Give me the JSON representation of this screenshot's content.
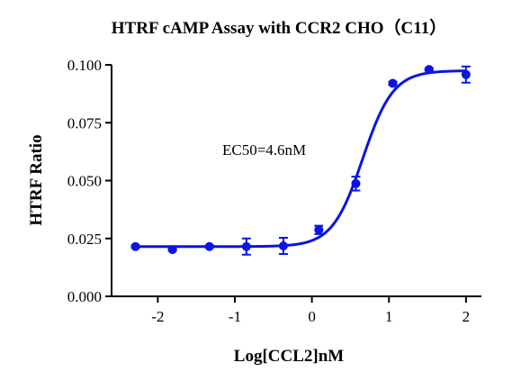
{
  "chart_data": {
    "type": "scatter",
    "title": "HTRF cAMP Assay with CCR2 CHO（C11）",
    "xlabel": "Log[CCL2]nM",
    "ylabel": "HTRF Ratio",
    "xlim": [
      -2.6,
      2.2
    ],
    "ylim": [
      0,
      0.1
    ],
    "x_ticks": [
      -2,
      -1,
      0,
      1,
      2
    ],
    "x_tick_labels": [
      "-2",
      "-1",
      "0",
      "1",
      "2"
    ],
    "y_ticks": [
      0,
      0.025,
      0.05,
      0.075,
      0.1
    ],
    "y_tick_labels": [
      "0.000",
      "0.025",
      "0.050",
      "0.075",
      "0.100"
    ],
    "grid": false,
    "color": "#0a14e6",
    "annotation": "EC50=4.6nM",
    "fit": {
      "model": "four-parameter logistic",
      "bottom": 0.0215,
      "top": 0.0975,
      "log_ec50": 0.66,
      "hill_slope": 2.2
    },
    "series": [
      {
        "x": [
          -2.29,
          -1.81,
          -1.33,
          -0.85,
          -0.37,
          0.09,
          0.57,
          1.05,
          1.52,
          2.0
        ],
        "y": [
          0.0215,
          0.0202,
          0.0215,
          0.0215,
          0.0218,
          0.0287,
          0.0487,
          0.092,
          0.098,
          0.0958
        ],
        "err": [
          0.0005,
          0.0004,
          0.0005,
          0.0035,
          0.0035,
          0.0018,
          0.003,
          0.0007,
          0.0005,
          0.0035
        ]
      }
    ]
  }
}
